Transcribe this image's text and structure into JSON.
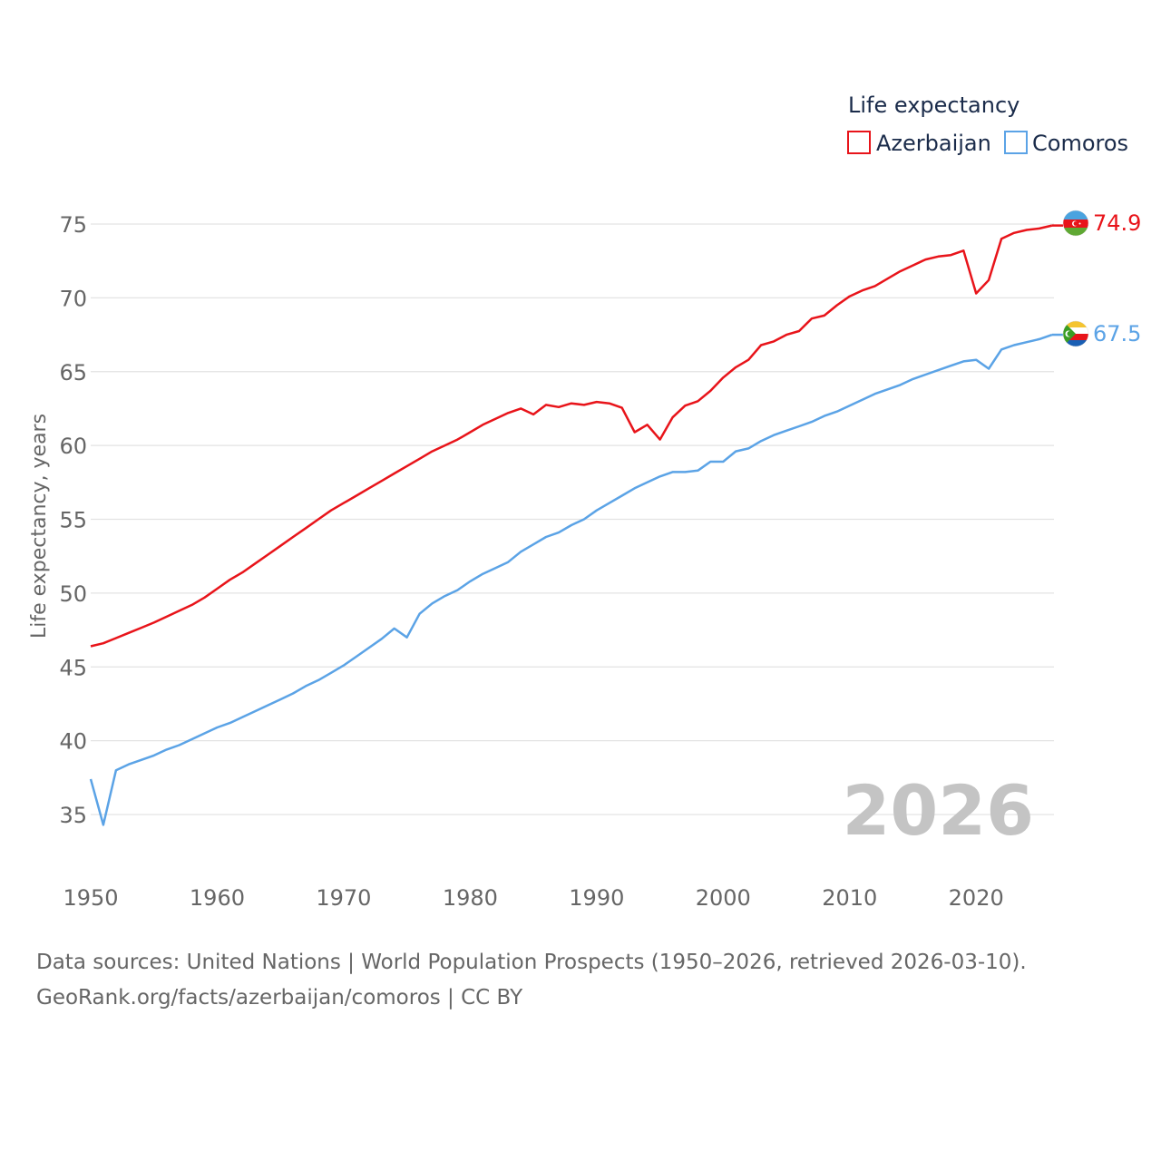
{
  "chart_data": {
    "type": "line",
    "legend_title": "Life expectancy",
    "ylabel": "Life expectancy, years",
    "xlabel": "",
    "year_label": "2026",
    "xlim": [
      1950,
      2026
    ],
    "ylim": [
      32.5,
      77
    ],
    "x_ticks": [
      1950,
      1960,
      1970,
      1980,
      1990,
      2000,
      2010,
      2020
    ],
    "y_ticks": [
      35,
      40,
      45,
      50,
      55,
      60,
      65,
      70,
      75
    ],
    "grid": true,
    "legend_position": "top-right",
    "x": [
      1950,
      1951,
      1952,
      1953,
      1954,
      1955,
      1956,
      1957,
      1958,
      1959,
      1960,
      1961,
      1962,
      1963,
      1964,
      1965,
      1966,
      1967,
      1968,
      1969,
      1970,
      1971,
      1972,
      1973,
      1974,
      1975,
      1976,
      1977,
      1978,
      1979,
      1980,
      1981,
      1982,
      1983,
      1984,
      1985,
      1986,
      1987,
      1988,
      1989,
      1990,
      1991,
      1992,
      1993,
      1994,
      1995,
      1996,
      1997,
      1998,
      1999,
      2000,
      2001,
      2002,
      2003,
      2004,
      2005,
      2006,
      2007,
      2008,
      2009,
      2010,
      2011,
      2012,
      2013,
      2014,
      2015,
      2016,
      2017,
      2018,
      2019,
      2020,
      2021,
      2022,
      2023,
      2024,
      2025,
      2026
    ],
    "series": [
      {
        "name": "Azerbaijan",
        "color": "#e8141a",
        "flag": "azerbaijan-flag-icon",
        "end_label": "74.9",
        "values": [
          46.4,
          46.6,
          46.95,
          47.3,
          47.65,
          48.0,
          48.4,
          48.8,
          49.2,
          49.7,
          50.3,
          50.9,
          51.4,
          52.0,
          52.6,
          53.2,
          53.8,
          54.4,
          55.0,
          55.6,
          56.1,
          56.6,
          57.1,
          57.6,
          58.1,
          58.6,
          59.1,
          59.6,
          60.0,
          60.4,
          60.9,
          61.4,
          61.8,
          62.2,
          62.5,
          62.1,
          62.75,
          62.6,
          62.85,
          62.75,
          62.95,
          62.85,
          62.55,
          60.9,
          61.4,
          60.4,
          61.9,
          62.7,
          63.0,
          63.7,
          64.6,
          65.3,
          65.8,
          66.8,
          67.05,
          67.5,
          67.75,
          68.6,
          68.8,
          69.5,
          70.1,
          70.5,
          70.8,
          71.3,
          71.8,
          72.2,
          72.6,
          72.8,
          72.9,
          73.2,
          70.3,
          71.2,
          74.0,
          74.4,
          74.6,
          74.7,
          74.9
        ]
      },
      {
        "name": "Comoros",
        "color": "#5ba3e6",
        "flag": "comoros-flag-icon",
        "end_label": "67.5",
        "values": [
          37.4,
          34.3,
          38.0,
          38.4,
          38.7,
          39.0,
          39.4,
          39.7,
          40.1,
          40.5,
          40.9,
          41.2,
          41.6,
          42.0,
          42.4,
          42.8,
          43.2,
          43.7,
          44.1,
          44.6,
          45.1,
          45.7,
          46.3,
          46.9,
          47.6,
          47.0,
          48.6,
          49.3,
          49.8,
          50.2,
          50.8,
          51.3,
          51.7,
          52.1,
          52.8,
          53.3,
          53.8,
          54.1,
          54.6,
          55.0,
          55.6,
          56.1,
          56.6,
          57.1,
          57.5,
          57.9,
          58.2,
          58.2,
          58.3,
          58.9,
          58.9,
          59.6,
          59.8,
          60.3,
          60.7,
          61.0,
          61.3,
          61.6,
          62.0,
          62.3,
          62.7,
          63.1,
          63.5,
          63.8,
          64.1,
          64.5,
          64.8,
          65.1,
          65.4,
          65.7,
          65.8,
          65.2,
          66.5,
          66.8,
          67.0,
          67.2,
          67.5
        ]
      }
    ]
  },
  "footer": {
    "source_line": "Data sources: United Nations | World Population Prospects (1950–2026, retrieved 2026-03-10).",
    "attribution_line": "GeoRank.org/facts/azerbaijan/comoros | CC BY"
  }
}
